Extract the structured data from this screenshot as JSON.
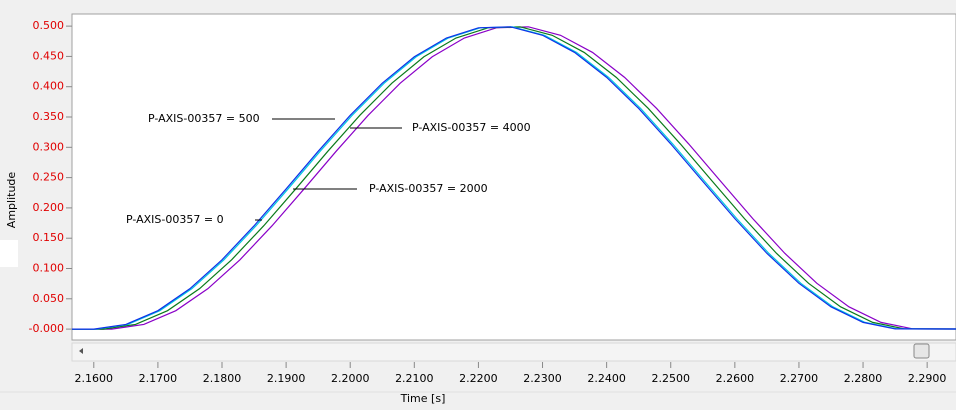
{
  "chart_data": {
    "type": "line",
    "xlabel": "Time [s]",
    "ylabel": "Amplitude",
    "xlim": [
      2.1566,
      2.2945
    ],
    "ylim": [
      -0.018,
      0.52
    ],
    "xticks": [
      {
        "value": 2.16,
        "label": "2.1600"
      },
      {
        "value": 2.17,
        "label": "2.1700"
      },
      {
        "value": 2.18,
        "label": "2.1800"
      },
      {
        "value": 2.19,
        "label": "2.1900"
      },
      {
        "value": 2.2,
        "label": "2.2000"
      },
      {
        "value": 2.21,
        "label": "2.2100"
      },
      {
        "value": 2.22,
        "label": "2.2200"
      },
      {
        "value": 2.23,
        "label": "2.2300"
      },
      {
        "value": 2.24,
        "label": "2.2400"
      },
      {
        "value": 2.25,
        "label": "2.2500"
      },
      {
        "value": 2.26,
        "label": "2.2600"
      },
      {
        "value": 2.27,
        "label": "2.2700"
      },
      {
        "value": 2.28,
        "label": "2.2800"
      },
      {
        "value": 2.29,
        "label": "2.2900"
      }
    ],
    "yticks": [
      {
        "value": 0,
        "label": "-0.000"
      },
      {
        "value": 0.05,
        "label": "0.050"
      },
      {
        "value": 0.1,
        "label": "0.100"
      },
      {
        "value": 0.15,
        "label": "0.150"
      },
      {
        "value": 0.2,
        "label": "0.200"
      },
      {
        "value": 0.25,
        "label": "0.250"
      },
      {
        "value": 0.3,
        "label": "0.300"
      },
      {
        "value": 0.35,
        "label": "0.350"
      },
      {
        "value": 0.4,
        "label": "0.400"
      },
      {
        "value": 0.45,
        "label": "0.450"
      },
      {
        "value": 0.5,
        "label": "0.500"
      }
    ],
    "ytick_color": "#e00000",
    "series": [
      {
        "name": "P-AXIS-00357 = 4000",
        "color": "#8a00c8",
        "x": [
          2.15,
          2.1628,
          2.1678,
          2.1728,
          2.1778,
          2.1828,
          2.1878,
          2.1928,
          2.1978,
          2.2028,
          2.2078,
          2.2128,
          2.2178,
          2.2228,
          2.2278,
          2.2328,
          2.2378,
          2.2428,
          2.2478,
          2.2528,
          2.2578,
          2.2628,
          2.2678,
          2.2728,
          2.2778,
          2.2828,
          2.2878,
          2.3
        ],
        "values": [
          0,
          0,
          0.0077,
          0.0304,
          0.0667,
          0.1144,
          0.1704,
          0.2313,
          0.2934,
          0.3528,
          0.4059,
          0.4494,
          0.4804,
          0.4972,
          0.4988,
          0.4849,
          0.4566,
          0.4154,
          0.3641,
          0.3056,
          0.2438,
          0.1823,
          0.125,
          0.0755,
          0.0367,
          0.0111,
          0.0003,
          0
        ]
      },
      {
        "name": "P-AXIS-00357 = 2000",
        "color": "#0a7a1a",
        "x": [
          2.15,
          2.1615,
          2.1665,
          2.1715,
          2.1765,
          2.1815,
          2.1865,
          2.1915,
          2.1965,
          2.2015,
          2.2065,
          2.2115,
          2.2165,
          2.2215,
          2.2265,
          2.2315,
          2.2365,
          2.2415,
          2.2465,
          2.2515,
          2.2565,
          2.2615,
          2.2665,
          2.2715,
          2.2765,
          2.2815,
          2.2865,
          2.3
        ],
        "values": [
          0,
          0,
          0.0077,
          0.0304,
          0.0667,
          0.1144,
          0.1704,
          0.2313,
          0.2934,
          0.3528,
          0.4059,
          0.4494,
          0.4804,
          0.4972,
          0.4988,
          0.4849,
          0.4566,
          0.4154,
          0.3641,
          0.3056,
          0.2438,
          0.1823,
          0.125,
          0.0755,
          0.0367,
          0.0111,
          0.0003,
          0
        ]
      },
      {
        "name": "P-AXIS-00357 = 500",
        "color": "#00c8e0",
        "x": [
          2.15,
          2.1603,
          2.1653,
          2.1703,
          2.1753,
          2.1803,
          2.1853,
          2.1903,
          2.1953,
          2.2003,
          2.2053,
          2.2103,
          2.2153,
          2.2203,
          2.2253,
          2.2303,
          2.2353,
          2.2403,
          2.2453,
          2.2503,
          2.2553,
          2.2603,
          2.2653,
          2.2703,
          2.2753,
          2.2803,
          2.2853,
          2.3
        ],
        "values": [
          0,
          0,
          0.0077,
          0.0304,
          0.0667,
          0.1144,
          0.1704,
          0.2313,
          0.2934,
          0.3528,
          0.4059,
          0.4494,
          0.4804,
          0.4972,
          0.4988,
          0.4849,
          0.4566,
          0.4154,
          0.3641,
          0.3056,
          0.2438,
          0.1823,
          0.125,
          0.0755,
          0.0367,
          0.0111,
          0.0003,
          0
        ]
      },
      {
        "name": "P-AXIS-00357 = 0",
        "color": "#1030e8",
        "x": [
          2.15,
          2.16,
          2.165,
          2.17,
          2.175,
          2.18,
          2.185,
          2.19,
          2.195,
          2.2,
          2.205,
          2.21,
          2.215,
          2.22,
          2.225,
          2.23,
          2.235,
          2.24,
          2.245,
          2.25,
          2.255,
          2.26,
          2.265,
          2.27,
          2.275,
          2.28,
          2.285,
          2.3
        ],
        "values": [
          0,
          0,
          0.0077,
          0.0304,
          0.0667,
          0.1144,
          0.1704,
          0.2313,
          0.2934,
          0.3528,
          0.4059,
          0.4494,
          0.4804,
          0.4972,
          0.4988,
          0.4849,
          0.4566,
          0.4154,
          0.3641,
          0.3056,
          0.2438,
          0.1823,
          0.125,
          0.0755,
          0.0367,
          0.0111,
          0.0003,
          0
        ]
      }
    ]
  }
}
